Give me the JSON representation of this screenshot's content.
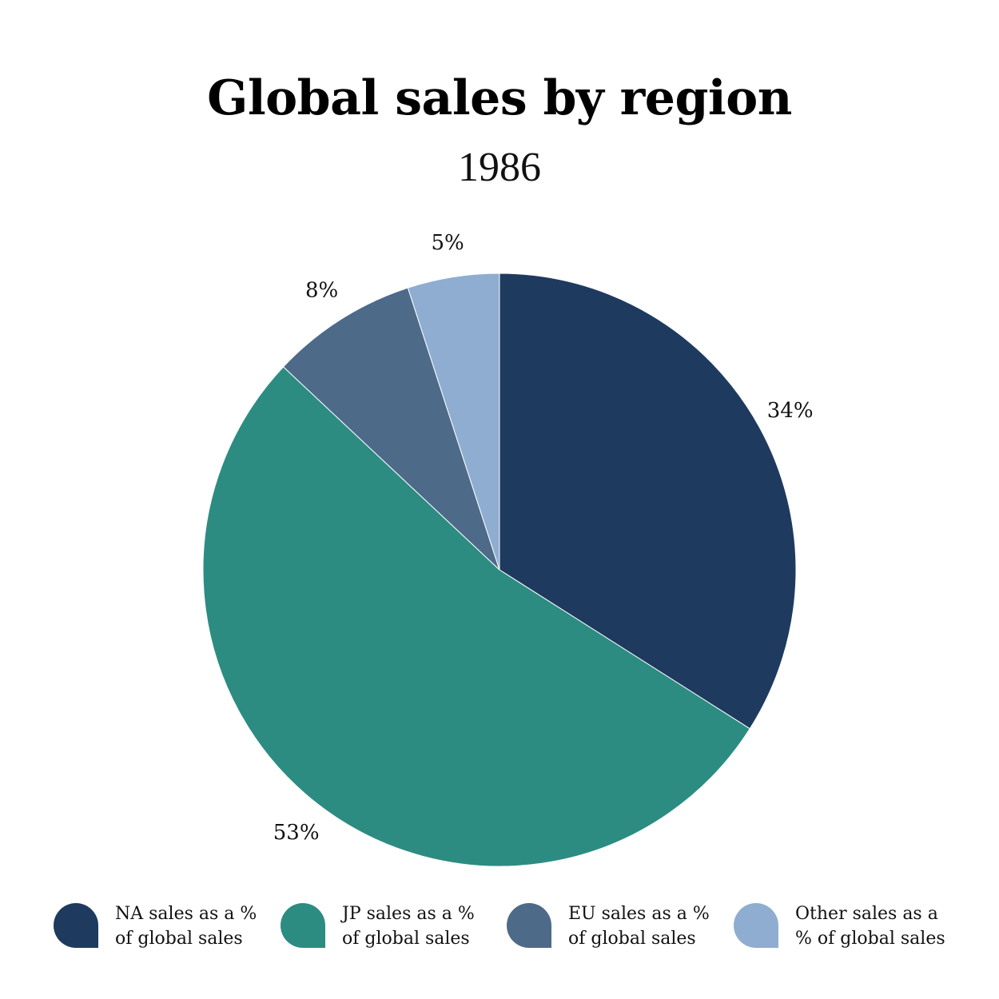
{
  "chart_data": {
    "type": "pie",
    "title": "Global sales by region",
    "subtitle": "1986",
    "slices": [
      {
        "label": "NA sales as a % of global sales",
        "value": 34,
        "display": "34%",
        "color": "#1f3a5f"
      },
      {
        "label": "JP sales as a % of global sales",
        "value": 53,
        "display": "53%",
        "color": "#2c8c82"
      },
      {
        "label": "EU sales as a % of global sales",
        "value": 8,
        "display": "8%",
        "color": "#4d6a89"
      },
      {
        "label": "Other sales as a % of global sales",
        "value": 5,
        "display": "5%",
        "color": "#8fadd1"
      }
    ],
    "legend_position": "bottom"
  },
  "legend": [
    {
      "line1": "NA sales as a %",
      "line2": "of global sales"
    },
    {
      "line1": "JP sales as a %",
      "line2": "of global sales"
    },
    {
      "line1": "EU sales as a %",
      "line2": "of global sales"
    },
    {
      "line1": "Other sales as a",
      "line2": "% of global sales"
    }
  ]
}
